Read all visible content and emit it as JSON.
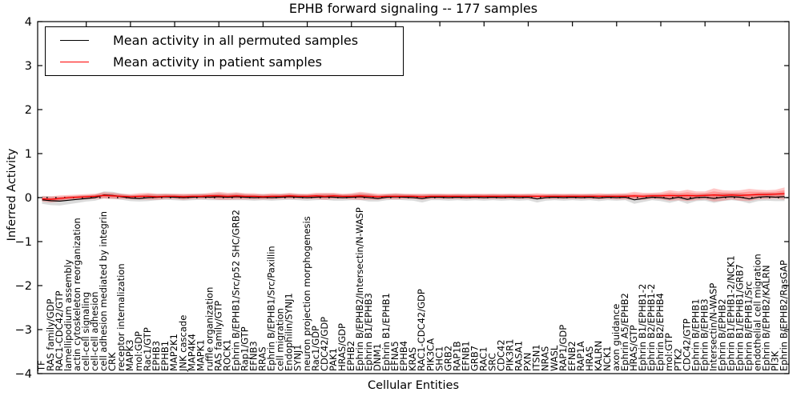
{
  "title": "EPHB forward signaling -- 177 samples",
  "chart_data": {
    "type": "line",
    "title": "EPHB forward signaling -- 177 samples",
    "xlabel": "Cellular Entities",
    "ylabel": "Inferred Activity",
    "ylim": [
      -4,
      4
    ],
    "yticks": [
      -4,
      -3,
      -2,
      -1,
      0,
      1,
      2,
      3,
      4
    ],
    "grid": false,
    "legend_position": "upper left",
    "zero_line_style": "dotted",
    "colors": {
      "permuted_line": "#000000",
      "patient_line": "#ff0000",
      "permuted_band": "rgba(110,110,110,0.25)",
      "patient_band": "rgba(255,0,0,0.22)",
      "axis": "#000000"
    },
    "categories": [
      "TF",
      "RAS family/GDP",
      "RAC1-CDC42/GTP",
      "lamellipodium assembly",
      "actin cytoskeleton reorganization",
      "cell-cell signaling",
      "cell-cell adhesion",
      "cell adhesion mediated by integrin",
      "CRK",
      "receptor internalization",
      "MAPK3",
      "mol:GDP",
      "Rac1/GTP",
      "EPHB3",
      "EPHB1",
      "MAP2K1",
      "JNK cascade",
      "MAP4K4",
      "MAPK1",
      "ruffle organization",
      "RAS family/GTP",
      "ROCK1",
      "Ephrin B/EPHB1/Src/p52 SHC/GRB2",
      "Rap1/GTP",
      "EFNB3",
      "RRAS",
      "Ephrin B/EPHB1/Src/Paxillin",
      "cell migration",
      "Endophilin/SYNJ1",
      "SYNJ1",
      "neuron projection morphogenesis",
      "Rac1/GDP",
      "CDC42/GDP",
      "PAK1",
      "HRAS/GDP",
      "EPHB2",
      "Ephrin B/EPHB2/Intersectin/N-WASP",
      "Ephrin B1/EPHB3",
      "DNM1",
      "Ephrin B1/EPHB1",
      "EFNA5",
      "EPHB4",
      "KRAS",
      "RAC1-CDC42/GDP",
      "PIK3CA",
      "SHC1",
      "GRB2",
      "RAP1B",
      "EFNB1",
      "GRB7",
      "RAC1",
      "SRC",
      "CDC42",
      "PIK3R1",
      "RASA1",
      "PXN",
      "ITSN1",
      "NRAS",
      "WASL",
      "RAP1/GDP",
      "EFNB2",
      "RAP1A",
      "HRAS",
      "KALRN",
      "NCK1",
      "axon guidance",
      "Ephrin A5/EPHB2",
      "HRAS/GTP",
      "Ephrin B1/EPHB1-2",
      "Ephrin B2/EPHB1-2",
      "Ephrin B2/EPHB4",
      "mol:GTP",
      "PTK2",
      "CDC42/GTP",
      "Ephrin B/EPHB1",
      "Ephrin B/EPHB3",
      "Intersectin/N-WASP",
      "Ephrin B/EPHB2",
      "Ephrin B1/EPHB1-2/NCK1",
      "Ephrin B1/EPHB1/GRB7",
      "Ephrin B/EPHB1/Src",
      "endothelial cell migration",
      "Ephrin B/EPHB2/KALRN",
      "PI3K",
      "Ephrin B/EPHB2/RasGAP"
    ],
    "series": [
      {
        "name": "Mean activity in all permuted samples",
        "color": "#000000",
        "values": [
          -0.05,
          -0.07,
          -0.08,
          -0.06,
          -0.04,
          -0.02,
          0.0,
          0.06,
          0.05,
          0.02,
          -0.01,
          -0.02,
          0.0,
          0.01,
          0.02,
          0.01,
          0.0,
          0.01,
          0.02,
          0.01,
          0.02,
          0.01,
          0.02,
          0.01,
          0.0,
          0.01,
          0.0,
          0.01,
          0.02,
          0.01,
          0.0,
          0.01,
          0.02,
          0.01,
          0.0,
          0.01,
          0.02,
          0.0,
          -0.02,
          0.01,
          0.02,
          0.01,
          0.0,
          -0.02,
          0.01,
          0.01,
          0.0,
          0.01,
          0.0,
          0.01,
          0.0,
          0.01,
          0.0,
          0.01,
          0.0,
          0.01,
          -0.03,
          0.0,
          0.01,
          0.0,
          0.01,
          0.0,
          0.01,
          -0.01,
          0.01,
          0.0,
          0.01,
          -0.05,
          -0.02,
          0.01,
          0.0,
          -0.03,
          0.01,
          -0.04,
          0.0,
          0.01,
          -0.02,
          0.01,
          0.02,
          0.01,
          -0.03,
          0.01,
          0.02,
          0.01,
          0.02
        ],
        "band_halfwidth": [
          0.09,
          0.1,
          0.1,
          0.09,
          0.08,
          0.07,
          0.07,
          0.08,
          0.08,
          0.07,
          0.07,
          0.07,
          0.08,
          0.07,
          0.07,
          0.07,
          0.07,
          0.07,
          0.07,
          0.07,
          0.08,
          0.07,
          0.08,
          0.07,
          0.07,
          0.07,
          0.07,
          0.07,
          0.07,
          0.07,
          0.07,
          0.07,
          0.07,
          0.08,
          0.07,
          0.07,
          0.08,
          0.09,
          0.07,
          0.07,
          0.07,
          0.07,
          0.07,
          0.09,
          0.07,
          0.07,
          0.07,
          0.07,
          0.07,
          0.07,
          0.07,
          0.07,
          0.07,
          0.07,
          0.07,
          0.07,
          0.08,
          0.07,
          0.07,
          0.07,
          0.07,
          0.07,
          0.07,
          0.07,
          0.07,
          0.07,
          0.07,
          0.09,
          0.08,
          0.07,
          0.08,
          0.09,
          0.08,
          0.1,
          0.08,
          0.08,
          0.1,
          0.09,
          0.08,
          0.09,
          0.1,
          0.09,
          0.09,
          0.09,
          0.1
        ]
      },
      {
        "name": "Mean activity in patient samples",
        "color": "#ff0000",
        "values": [
          -0.03,
          -0.04,
          -0.02,
          0.0,
          0.01,
          0.02,
          0.03,
          0.05,
          0.04,
          0.03,
          0.02,
          0.03,
          0.03,
          0.02,
          0.03,
          0.03,
          0.02,
          0.03,
          0.03,
          0.04,
          0.04,
          0.03,
          0.04,
          0.03,
          0.03,
          0.02,
          0.03,
          0.03,
          0.04,
          0.03,
          0.03,
          0.04,
          0.03,
          0.04,
          0.03,
          0.03,
          0.04,
          0.03,
          0.02,
          0.03,
          0.03,
          0.03,
          0.03,
          0.02,
          0.03,
          0.03,
          0.03,
          0.03,
          0.03,
          0.03,
          0.03,
          0.03,
          0.03,
          0.03,
          0.03,
          0.03,
          0.03,
          0.03,
          0.03,
          0.03,
          0.03,
          0.03,
          0.03,
          0.03,
          0.03,
          0.03,
          0.03,
          0.04,
          0.03,
          0.04,
          0.04,
          0.05,
          0.04,
          0.05,
          0.04,
          0.05,
          0.06,
          0.05,
          0.06,
          0.05,
          0.06,
          0.07,
          0.07,
          0.08,
          0.09
        ],
        "band_halfwidth": [
          0.06,
          0.07,
          0.07,
          0.06,
          0.06,
          0.06,
          0.06,
          0.07,
          0.07,
          0.06,
          0.06,
          0.07,
          0.08,
          0.07,
          0.06,
          0.06,
          0.07,
          0.06,
          0.06,
          0.07,
          0.09,
          0.08,
          0.08,
          0.07,
          0.07,
          0.06,
          0.07,
          0.06,
          0.07,
          0.06,
          0.06,
          0.07,
          0.08,
          0.07,
          0.06,
          0.07,
          0.09,
          0.08,
          0.07,
          0.06,
          0.07,
          0.06,
          0.06,
          0.07,
          0.06,
          0.06,
          0.06,
          0.06,
          0.06,
          0.06,
          0.06,
          0.06,
          0.06,
          0.06,
          0.06,
          0.06,
          0.07,
          0.06,
          0.06,
          0.06,
          0.06,
          0.06,
          0.06,
          0.07,
          0.06,
          0.07,
          0.07,
          0.09,
          0.08,
          0.07,
          0.08,
          0.12,
          0.1,
          0.13,
          0.1,
          0.09,
          0.15,
          0.12,
          0.1,
          0.12,
          0.14,
          0.11,
          0.1,
          0.1,
          0.14
        ]
      }
    ]
  }
}
